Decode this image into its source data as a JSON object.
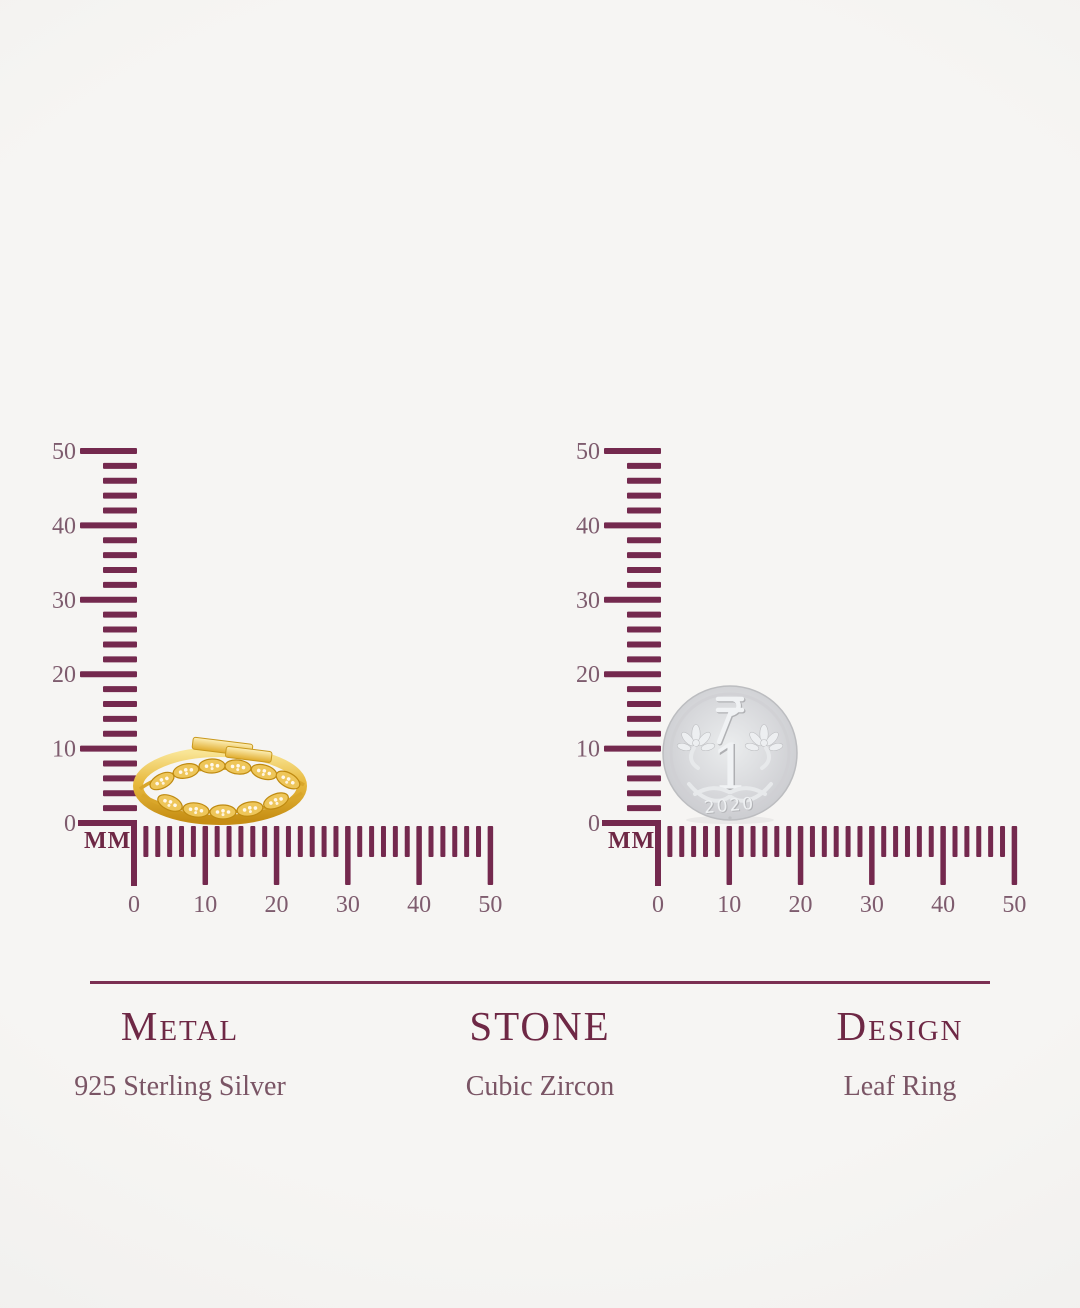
{
  "colors": {
    "background": "#f5f4f2",
    "accent": "#7b2f52",
    "accent_dark": "#6e2845",
    "tick": "#74294e",
    "ruler_label": "#7e5c6e",
    "value_text": "#7a5565",
    "ring_gold": "#e8ba3e",
    "coin_silver": "#d9dadd"
  },
  "rulers": {
    "unit_label": "MM",
    "vertical_labels": [
      "50",
      "40",
      "30",
      "20",
      "10",
      "0"
    ],
    "horizontal_labels": [
      "0",
      "10",
      "20",
      "30",
      "40",
      "50"
    ],
    "tick_color": "#74294e",
    "label_color": "#7e5c6e"
  },
  "coin": {
    "currency_symbol": "₹",
    "denomination": "1",
    "year": "2020"
  },
  "details": {
    "columns": [
      {
        "label": "Metal",
        "value": "925 Sterling Silver"
      },
      {
        "label": "STONE",
        "value": "Cubic Zircon"
      },
      {
        "label": "Design",
        "value": "Leaf Ring"
      }
    ]
  }
}
